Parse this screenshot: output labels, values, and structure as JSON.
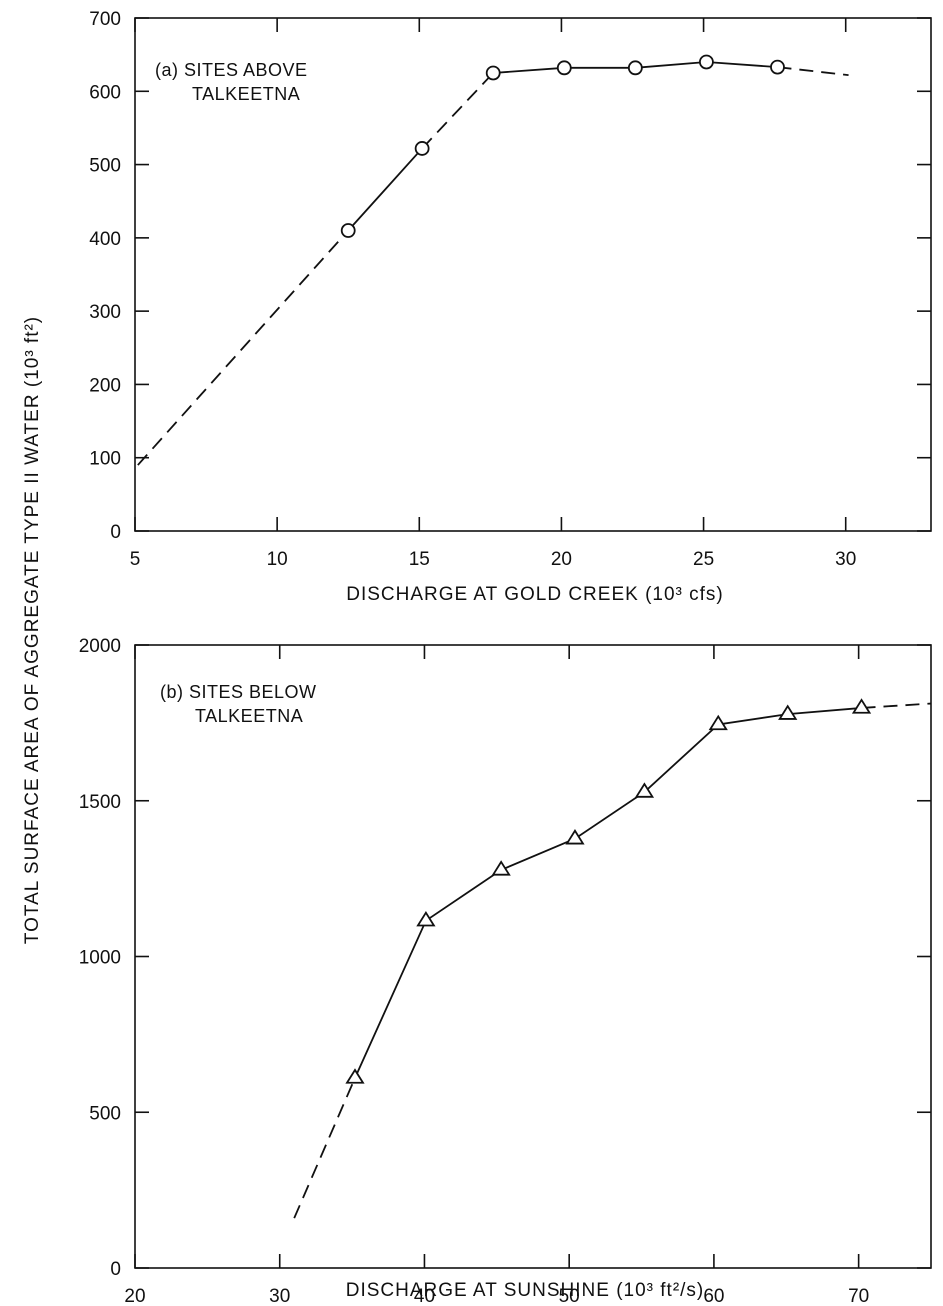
{
  "shared_ylabel": "TOTAL SURFACE AREA OF AGGREGATE TYPE II WATER (10³ ft²)",
  "chart_data": [
    {
      "type": "line",
      "panel": "a",
      "annotation": [
        "(a) SITES ABOVE",
        "TALKEETNA"
      ],
      "xlabel": "DISCHARGE AT GOLD CREEK (10³ cfs)",
      "ylabel": "TOTAL SURFACE AREA OF AGGREGATE TYPE II WATER (10³ ft²)",
      "xlim": [
        5,
        33
      ],
      "ylim": [
        0,
        700
      ],
      "xticks": [
        5,
        10,
        15,
        20,
        25,
        30
      ],
      "yticks": [
        0,
        100,
        200,
        300,
        400,
        500,
        600,
        700
      ],
      "marker": "circle",
      "series": [
        {
          "points": [
            {
              "x": 12.5,
              "y": 410
            },
            {
              "x": 15.1,
              "y": 522
            },
            {
              "x": 17.6,
              "y": 625
            },
            {
              "x": 20.1,
              "y": 632
            },
            {
              "x": 22.6,
              "y": 632
            },
            {
              "x": 25.1,
              "y": 640
            },
            {
              "x": 27.6,
              "y": 633
            }
          ],
          "extrapolated_low": [
            [
              5.1,
              90
            ],
            [
              12.5,
              410
            ]
          ],
          "extrapolated_gap": [
            [
              15.1,
              522
            ],
            [
              17.6,
              625
            ]
          ],
          "extrapolated_high": [
            [
              27.6,
              633
            ],
            [
              30.1,
              622
            ]
          ]
        }
      ]
    },
    {
      "type": "line",
      "panel": "b",
      "annotation": [
        "(b) SITES BELOW",
        "TALKEETNA"
      ],
      "xlabel": "DISCHARGE AT SUNSHINE (10³ ft²/s)",
      "ylabel": "TOTAL SURFACE AREA OF AGGREGATE TYPE II WATER (10³ ft²)",
      "xlim": [
        20,
        75
      ],
      "ylim": [
        0,
        2000
      ],
      "xticks": [
        20,
        30,
        40,
        50,
        60,
        70
      ],
      "yticks": [
        0,
        500,
        1000,
        1500,
        2000
      ],
      "marker": "triangle",
      "series": [
        {
          "points": [
            {
              "x": 35.2,
              "y": 610
            },
            {
              "x": 40.1,
              "y": 1115
            },
            {
              "x": 45.3,
              "y": 1278
            },
            {
              "x": 50.4,
              "y": 1378
            },
            {
              "x": 55.2,
              "y": 1528
            },
            {
              "x": 60.3,
              "y": 1745
            },
            {
              "x": 65.1,
              "y": 1778
            },
            {
              "x": 70.2,
              "y": 1798
            }
          ],
          "extrapolated_low": [
            [
              31,
              160
            ],
            [
              35.2,
              610
            ]
          ],
          "extrapolated_high": [
            [
              70.2,
              1798
            ],
            [
              75,
              1812
            ]
          ]
        }
      ]
    }
  ]
}
